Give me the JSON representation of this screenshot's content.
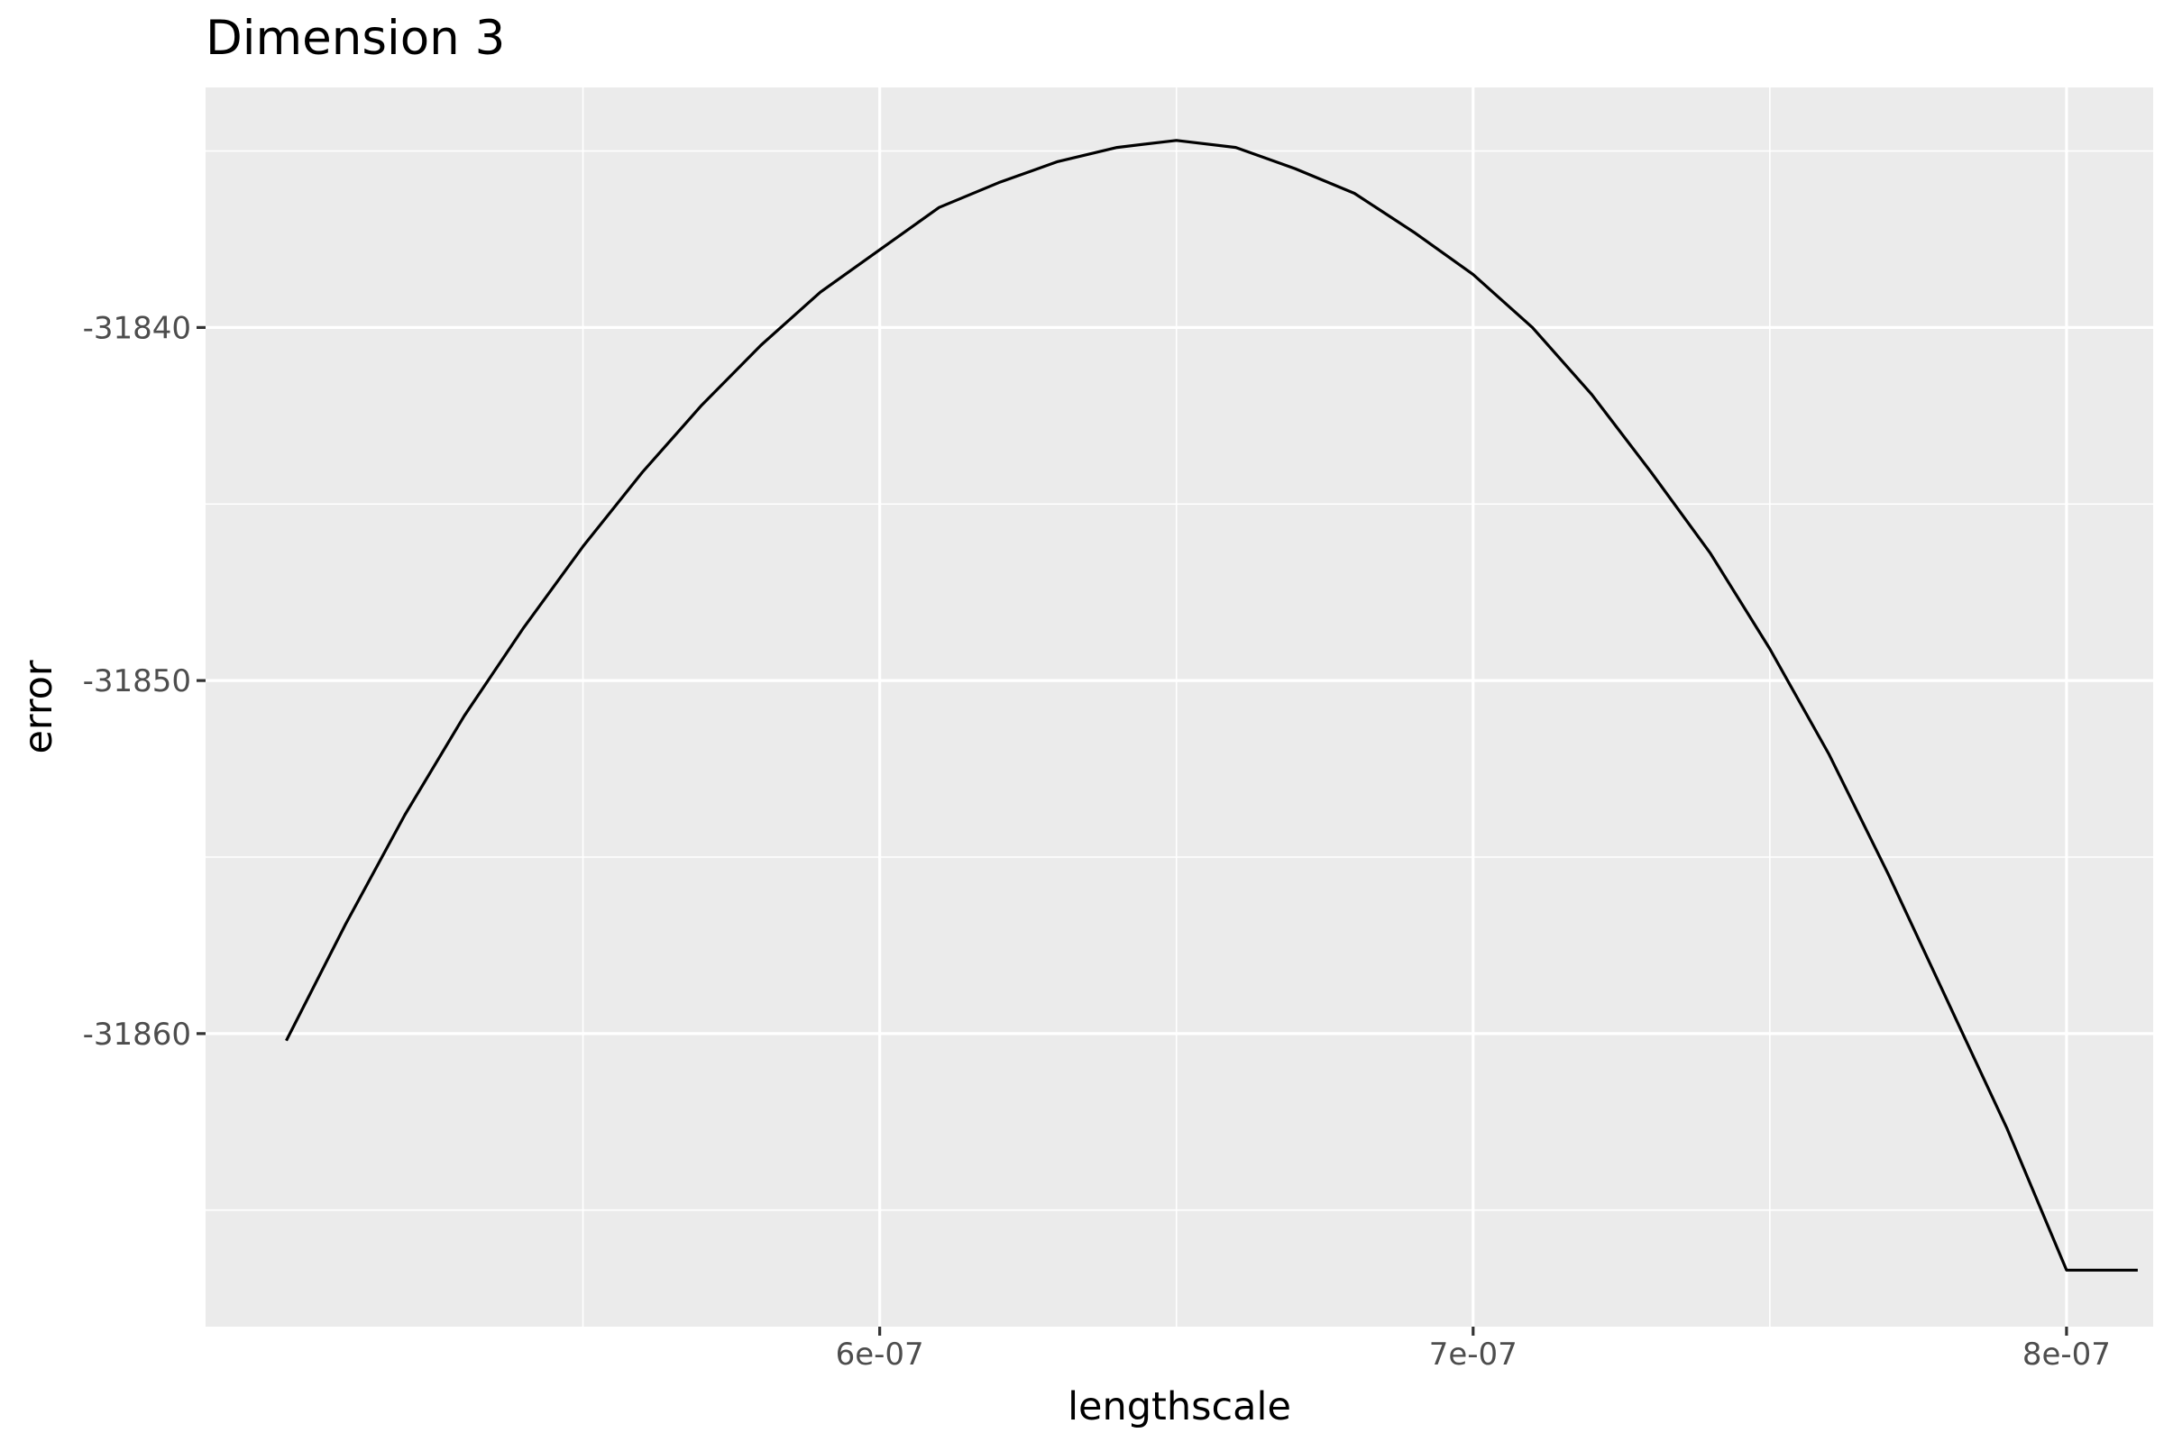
{
  "chart_data": {
    "type": "line",
    "title": "Dimension 3",
    "xlabel": "lengthscale",
    "ylabel": "error",
    "xlim": [
      4.864e-07,
      8.146e-07
    ],
    "ylim": [
      -31868.3,
      -31833.2
    ],
    "x_ticks": [
      {
        "value": 6e-07,
        "label": "6e-07"
      },
      {
        "value": 7e-07,
        "label": "7e-07"
      },
      {
        "value": 8e-07,
        "label": "8e-07"
      }
    ],
    "x_minor_ticks": [
      5.5e-07,
      6.5e-07,
      7.5e-07
    ],
    "y_ticks": [
      {
        "value": -31840,
        "label": "-31840"
      },
      {
        "value": -31850,
        "label": "-31850"
      },
      {
        "value": -31860,
        "label": "-31860"
      }
    ],
    "y_minor_ticks": [
      -31835,
      -31845,
      -31855,
      -31865
    ],
    "grid": true,
    "legend": "none",
    "series": [
      {
        "color": "#000000",
        "x": [
          5e-07,
          5.1e-07,
          5.2e-07,
          5.3e-07,
          5.4e-07,
          5.5e-07,
          5.6e-07,
          5.7e-07,
          5.8e-07,
          5.9e-07,
          6e-07,
          6.1e-07,
          6.2e-07,
          6.3e-07,
          6.4e-07,
          6.5e-07,
          6.6e-07,
          6.7e-07,
          6.8e-07,
          6.9e-07,
          7e-07,
          7.1e-07,
          7.2e-07,
          7.3e-07,
          7.4e-07,
          7.5e-07,
          7.6e-07,
          7.7e-07,
          7.8e-07,
          7.9e-07,
          8e-07,
          8.12e-07
        ],
        "y": [
          -31860.2,
          -31856.9,
          -31853.8,
          -31851.0,
          -31848.5,
          -31846.2,
          -31844.1,
          -31842.2,
          -31840.5,
          -31839.0,
          -31837.8,
          -31836.6,
          -31835.9,
          -31835.3,
          -31834.9,
          -31834.7,
          -31834.9,
          -31835.5,
          -31836.2,
          -31837.3,
          -31838.5,
          -31840.0,
          -31841.9,
          -31844.1,
          -31846.4,
          -31849.1,
          -31852.1,
          -31855.5,
          -31859.1,
          -31862.7,
          -31866.7,
          -31866.7
        ]
      }
    ]
  }
}
